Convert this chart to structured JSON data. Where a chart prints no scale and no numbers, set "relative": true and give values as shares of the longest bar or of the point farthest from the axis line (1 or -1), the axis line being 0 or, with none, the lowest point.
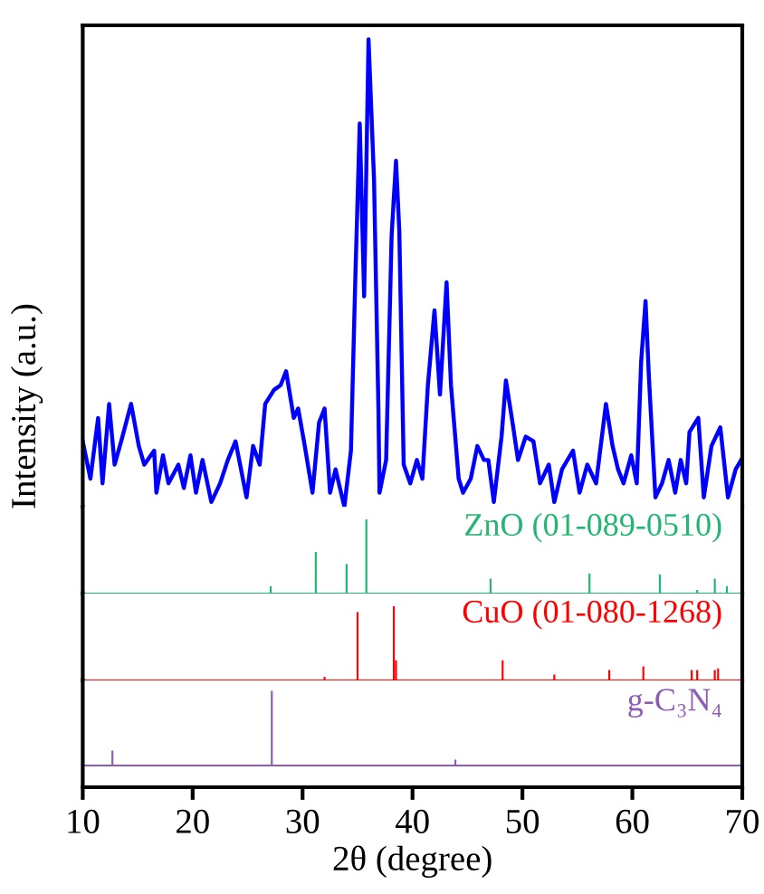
{
  "chart_data": [
    {
      "type": "line",
      "relative": true,
      "ylabel": "Intensity (a.u.)",
      "xlim": [
        10,
        70
      ],
      "xticks": [
        10,
        20,
        30,
        40,
        50,
        60,
        70
      ],
      "tick_labels": false,
      "series": [
        {
          "color": "#0000ff",
          "x": [
            10.0,
            10.7,
            11.4,
            11.8,
            12.4,
            12.9,
            13.5,
            14.4,
            15.1,
            15.6,
            16.5,
            16.7,
            17.3,
            17.8,
            18.7,
            19.2,
            19.8,
            20.3,
            20.9,
            21.7,
            22.5,
            23.2,
            23.9,
            24.9,
            25.5,
            26.1,
            26.6,
            27.4,
            28.0,
            28.5,
            29.2,
            29.6,
            30.2,
            30.9,
            31.5,
            32.0,
            32.5,
            33.0,
            33.8,
            34.4,
            34.8,
            35.2,
            35.6,
            36.0,
            36.5,
            36.9,
            37.0,
            37.6,
            38.1,
            38.5,
            38.8,
            39.2,
            39.8,
            40.4,
            40.9,
            41.4,
            42.0,
            42.5,
            43.1,
            43.5,
            44.2,
            44.6,
            45.3,
            45.9,
            46.5,
            46.9,
            47.4,
            48.1,
            48.5,
            49.1,
            49.6,
            50.3,
            51.0,
            51.6,
            52.4,
            52.9,
            53.6,
            54.6,
            55.2,
            55.9,
            56.7,
            57.6,
            58.2,
            58.7,
            59.2,
            59.9,
            60.4,
            60.8,
            61.2,
            61.5,
            62.1,
            62.7,
            63.3,
            63.9,
            64.4,
            64.9,
            65.2,
            66.0,
            66.5,
            67.2,
            68.0,
            68.7,
            69.4,
            69.9
          ],
          "values": [
            0.14,
            0.06,
            0.19,
            0.05,
            0.22,
            0.09,
            0.14,
            0.22,
            0.13,
            0.09,
            0.12,
            0.03,
            0.11,
            0.05,
            0.09,
            0.04,
            0.11,
            0.03,
            0.1,
            0.01,
            0.05,
            0.1,
            0.14,
            0.02,
            0.13,
            0.09,
            0.22,
            0.25,
            0.26,
            0.29,
            0.19,
            0.21,
            0.13,
            0.03,
            0.18,
            0.21,
            0.03,
            0.08,
            0.0,
            0.12,
            0.49,
            0.82,
            0.45,
            1.0,
            0.7,
            0.21,
            0.03,
            0.1,
            0.58,
            0.74,
            0.59,
            0.09,
            0.05,
            0.1,
            0.06,
            0.26,
            0.42,
            0.24,
            0.48,
            0.26,
            0.06,
            0.03,
            0.06,
            0.13,
            0.1,
            0.1,
            0.01,
            0.15,
            0.27,
            0.18,
            0.1,
            0.15,
            0.14,
            0.05,
            0.09,
            0.01,
            0.08,
            0.12,
            0.03,
            0.09,
            0.05,
            0.22,
            0.13,
            0.08,
            0.05,
            0.11,
            0.05,
            0.31,
            0.44,
            0.28,
            0.02,
            0.05,
            0.1,
            0.03,
            0.1,
            0.05,
            0.16,
            0.19,
            0.02,
            0.13,
            0.17,
            0.02,
            0.08,
            0.1
          ]
        }
      ]
    },
    {
      "type": "bar",
      "relative": true,
      "xlim": [
        10,
        70
      ],
      "xticks": [
        10,
        20,
        30,
        40,
        50,
        60,
        70
      ],
      "tick_labels": false,
      "series": [
        {
          "name": "ZnO (01-089-0510)",
          "color": "#22b573",
          "x": [
            27.1,
            31.2,
            34.0,
            35.8,
            47.1,
            56.1,
            62.5,
            65.9,
            67.5,
            68.6
          ],
          "values": [
            0.1,
            0.56,
            0.4,
            1.0,
            0.2,
            0.27,
            0.26,
            0.05,
            0.2,
            0.1
          ]
        }
      ]
    },
    {
      "type": "bar",
      "relative": true,
      "xlim": [
        10,
        70
      ],
      "xticks": [
        10,
        20,
        30,
        40,
        50,
        60,
        70
      ],
      "tick_labels": false,
      "series": [
        {
          "name": "CuO (01-080-1268)",
          "color": "#ff0000",
          "x": [
            32.0,
            35.0,
            38.3,
            38.5,
            48.2,
            52.9,
            57.9,
            61.0,
            65.4,
            65.9,
            67.5,
            67.8
          ],
          "values": [
            0.05,
            0.92,
            1.0,
            0.27,
            0.27,
            0.08,
            0.14,
            0.19,
            0.14,
            0.14,
            0.14,
            0.16
          ]
        }
      ]
    },
    {
      "type": "bar",
      "relative": true,
      "xlabel": "2θ (degree)",
      "xlim": [
        10,
        70
      ],
      "xticks": [
        10,
        20,
        30,
        40,
        50,
        60,
        70
      ],
      "tick_labels": "x",
      "series": [
        {
          "name": "g-C₃N₄",
          "color": "#8e5cb5",
          "x": [
            12.7,
            27.2,
            43.9
          ],
          "values": [
            0.2,
            1.0,
            0.08
          ]
        }
      ]
    }
  ]
}
